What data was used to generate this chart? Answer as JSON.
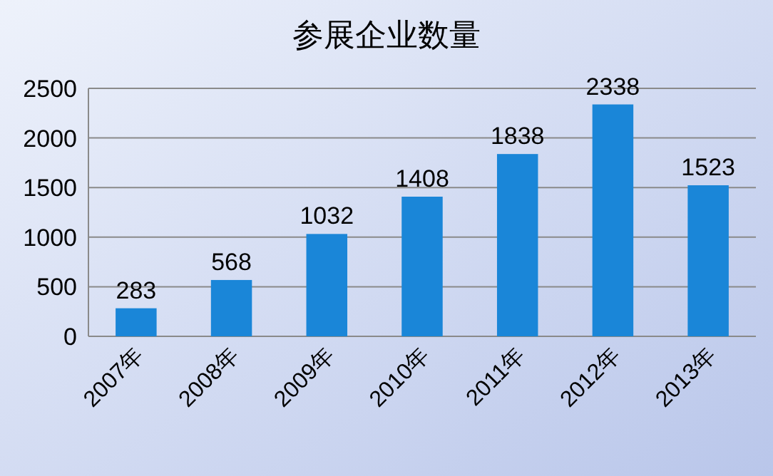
{
  "chart_data": {
    "type": "bar",
    "title": "参展企业数量",
    "categories": [
      "2007年",
      "2008年",
      "2009年",
      "2010年",
      "2011年",
      "2012年",
      "2013年"
    ],
    "values": [
      283,
      568,
      1032,
      1408,
      1838,
      2338,
      1523
    ],
    "color": "#1a86d8",
    "ylim": [
      0,
      2500
    ],
    "yticks": [
      0,
      500,
      1000,
      1500,
      2000,
      2500
    ],
    "grid": "y",
    "data_labels": true
  }
}
